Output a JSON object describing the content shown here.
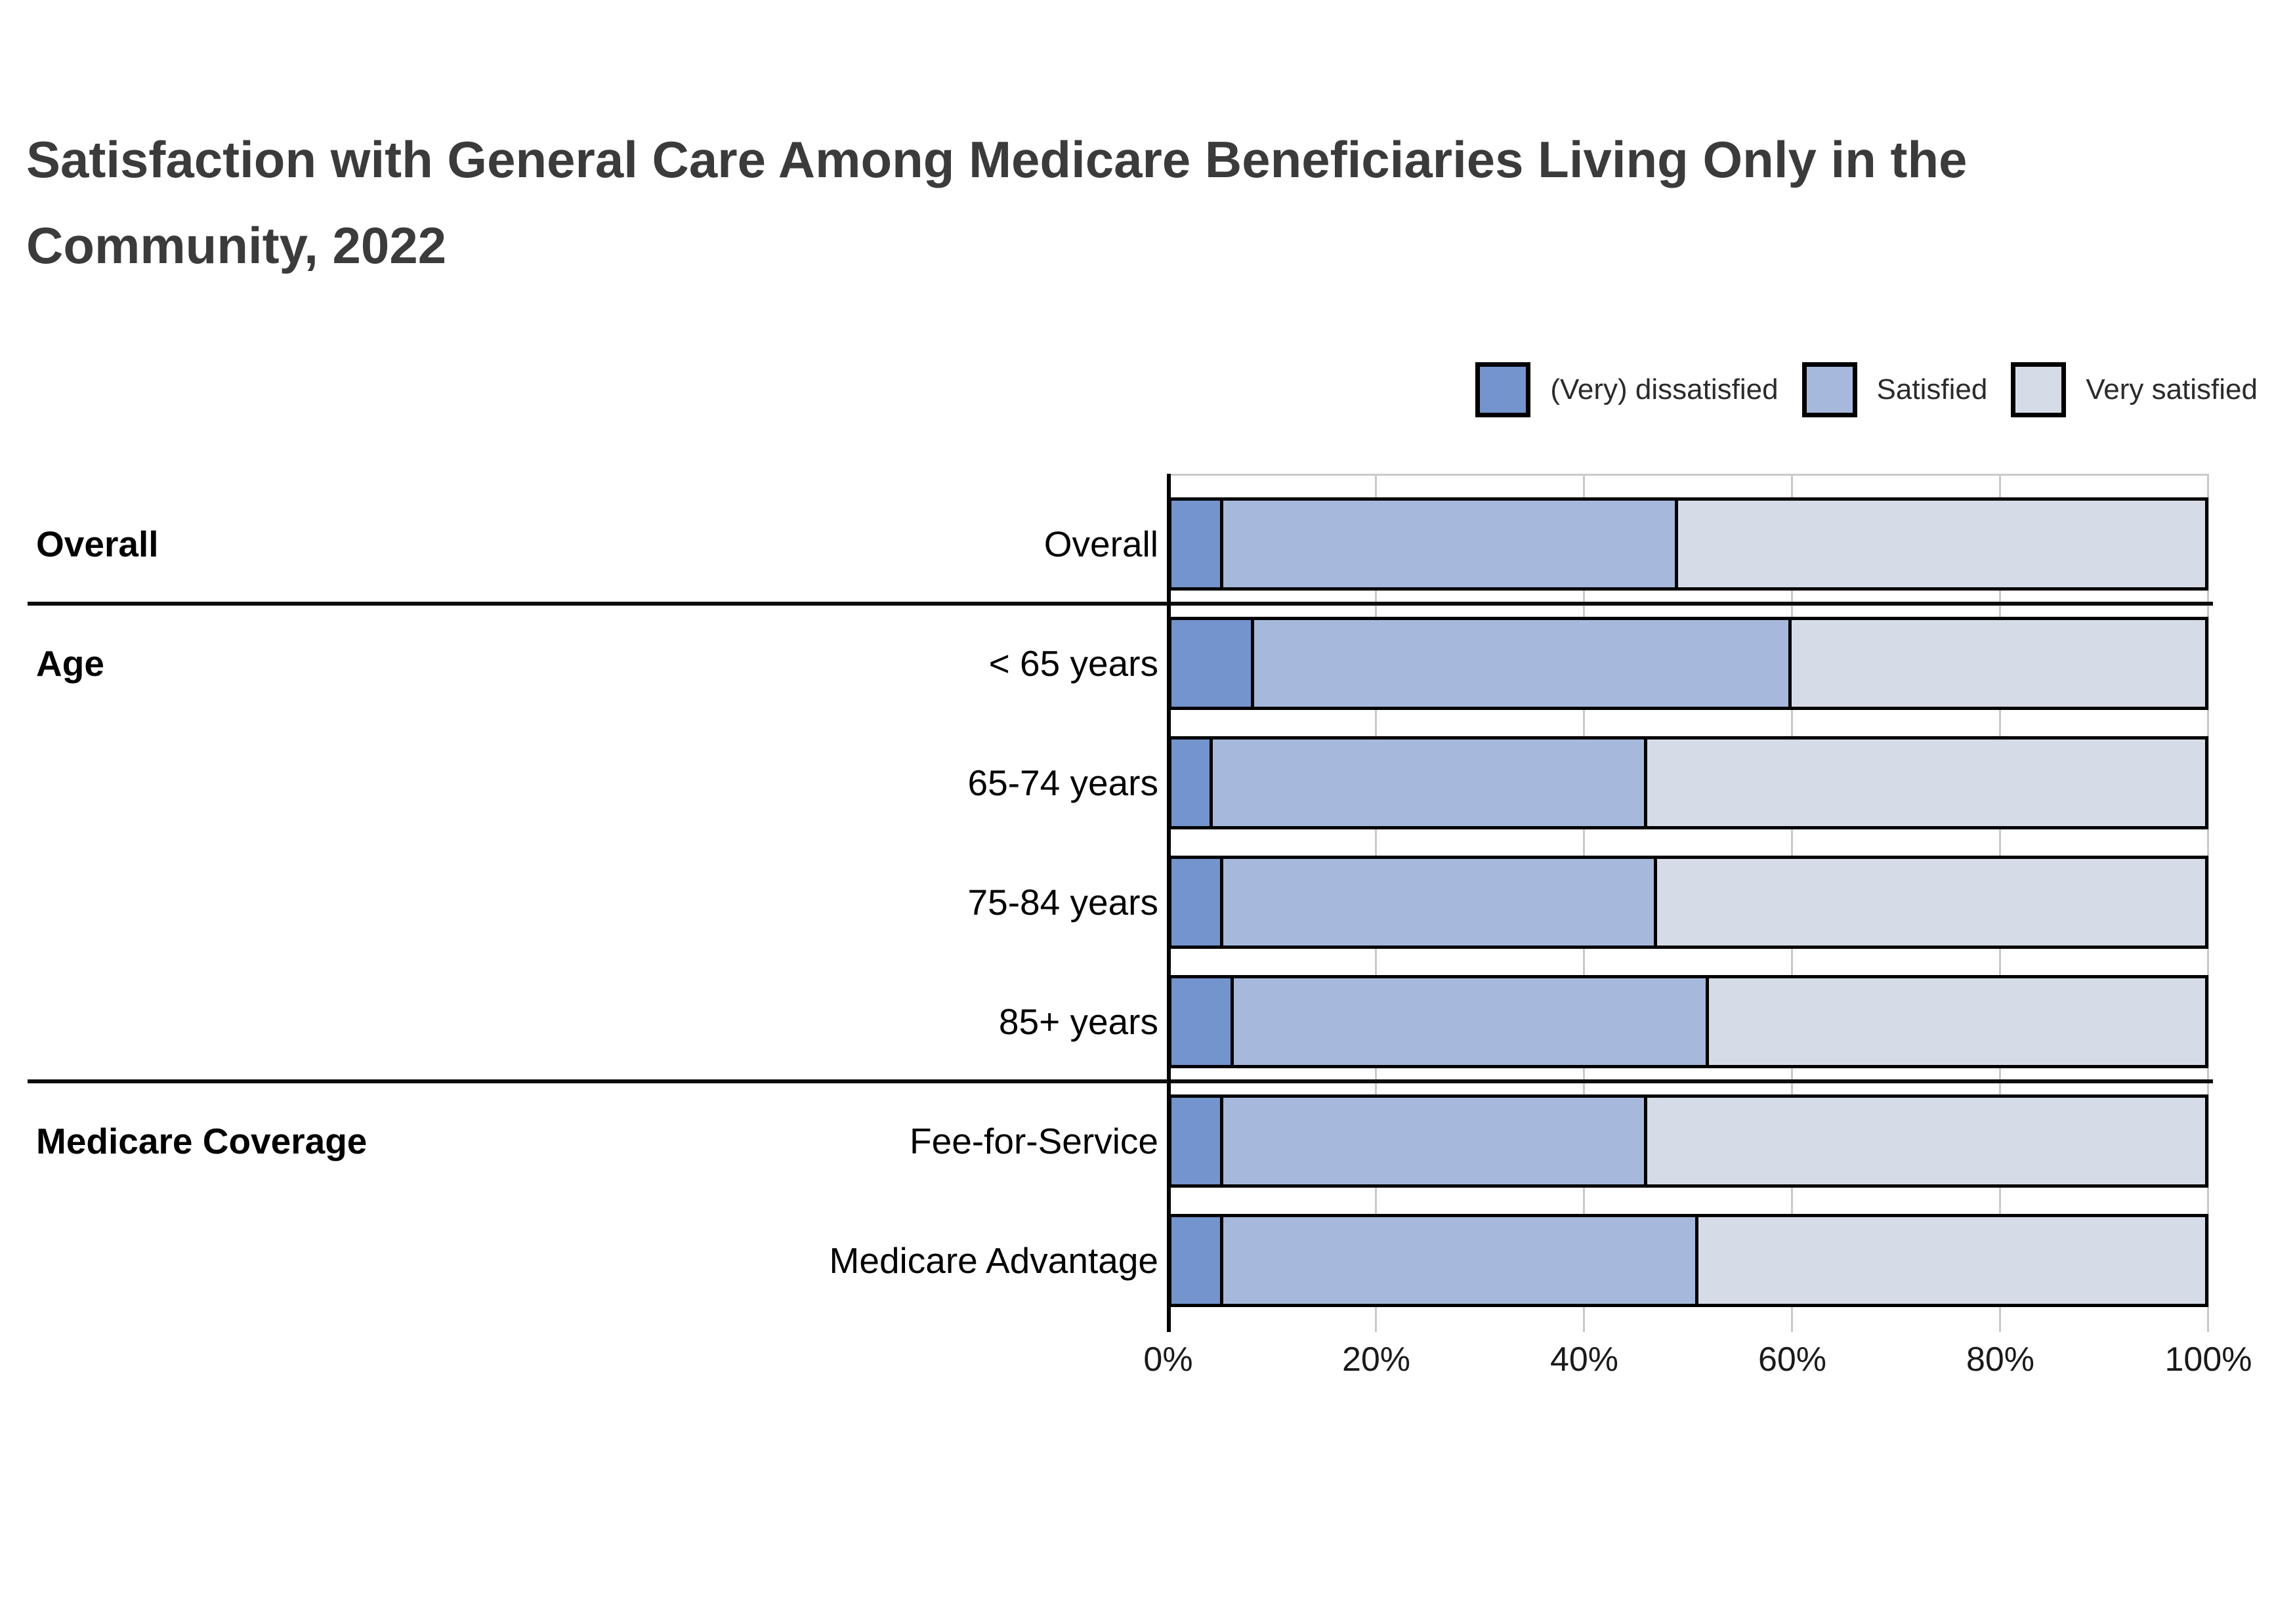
{
  "title": "Satisfaction with General Care Among Medicare Beneficiaries Living Only in the Community, 2022",
  "colors": {
    "dissatisfied": "#7394CD",
    "satisfied": "#A6B9DC",
    "very_satisfied": "#D6DCE7",
    "bar_border": "#000000",
    "gridline": "#c9c9c9",
    "title_text": "#3b3b3b"
  },
  "chart_data": {
    "type": "bar",
    "stacked": true,
    "orientation": "horizontal",
    "title": "Satisfaction with General Care Among Medicare Beneficiaries Living Only in the Community, 2022",
    "xlabel": "",
    "ylabel": "",
    "xlim": [
      0,
      100
    ],
    "x_ticks": [
      "0%",
      "20%",
      "40%",
      "60%",
      "80%",
      "100%"
    ],
    "grid": true,
    "legend_position": "top-right",
    "categories": [
      "Overall",
      "< 65 years",
      "65-74 years",
      "75-84 years",
      "85+ years",
      "Fee-for-Service",
      "Medicare Advantage"
    ],
    "groups": [
      {
        "label": "Overall",
        "rows": [
          "Overall"
        ]
      },
      {
        "label": "Age",
        "rows": [
          "< 65 years",
          "65-74 years",
          "75-84 years",
          "85+ years"
        ]
      },
      {
        "label": "Medicare Coverage",
        "rows": [
          "Fee-for-Service",
          "Medicare Advantage"
        ]
      }
    ],
    "series": [
      {
        "name": "(Very) dissatisfied",
        "color": "#7394CD",
        "values": [
          5,
          8,
          4,
          5,
          6,
          5,
          5
        ]
      },
      {
        "name": "Satisfied",
        "color": "#A6B9DC",
        "values": [
          44,
          52,
          42,
          42,
          46,
          41,
          46
        ]
      },
      {
        "name": "Very satisfied",
        "color": "#D6DCE7",
        "values": [
          51,
          40,
          54,
          53,
          48,
          54,
          49
        ]
      }
    ]
  }
}
